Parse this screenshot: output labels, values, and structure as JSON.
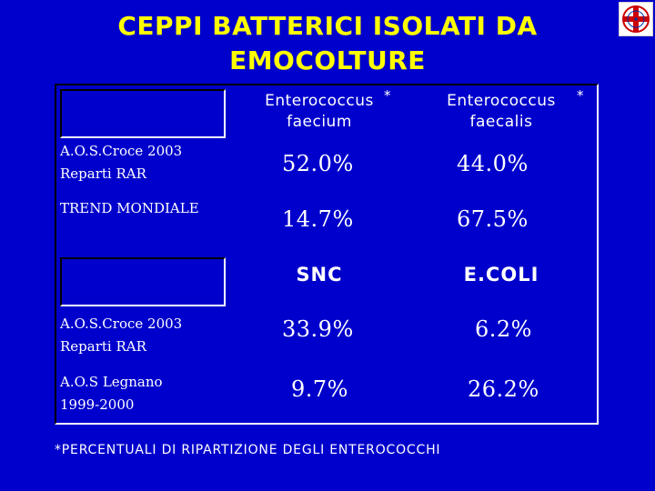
{
  "slide": {
    "title_line1": "CEPPI BATTERICI ISOLATI DA",
    "title_line2": "EMOCOLTURE",
    "logo_icon": "hospital-cross-logo-icon"
  },
  "table1": {
    "col1_line1": "Enterococcus",
    "col1_line2": "faecium",
    "col2_line1": "Enterococcus",
    "col2_line2": "faecalis",
    "asterisk": "*",
    "rows": [
      {
        "label_line1": "A.O.S.Croce 2003",
        "label_line2": "Reparti  RAR",
        "v1": "52.0%",
        "v2": "44.0%"
      },
      {
        "label_line1": "TREND MONDIALE",
        "label_line2": "",
        "v1": "14.7%",
        "v2": "67.5%"
      }
    ]
  },
  "table2": {
    "col1": "SNC",
    "col2": "E.COLI",
    "rows": [
      {
        "label_line1": "A.O.S.Croce 2003",
        "label_line2": "Reparti RAR",
        "v1": "33.9%",
        "v2": "6.2%"
      },
      {
        "label_line1": "A.O.S Legnano",
        "label_line2": "1999-2000",
        "v1": "9.7%",
        "v2": "26.2%"
      }
    ]
  },
  "footnote": "*PERCENTUALI DI RIPARTIZIONE DEGLI ENTEROCOCCHI",
  "colors": {
    "background": "#0000cc",
    "title": "#ffff00",
    "text": "#ffffff"
  }
}
